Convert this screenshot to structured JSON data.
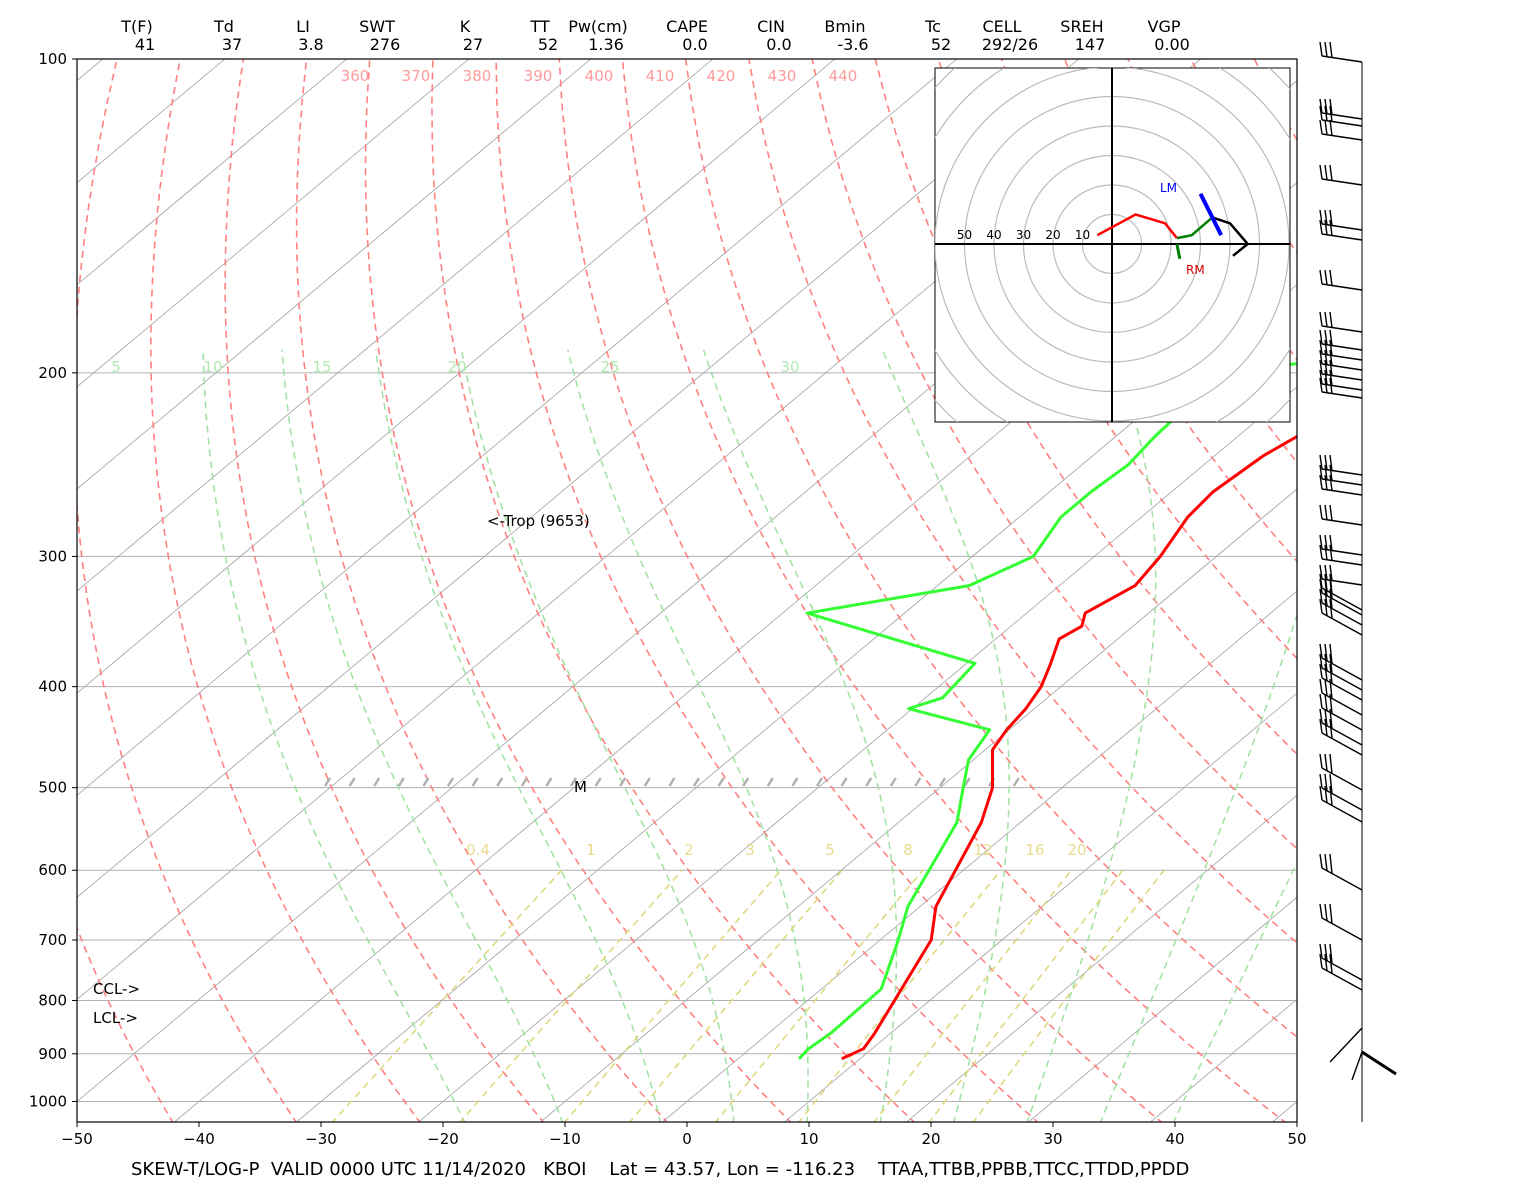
{
  "header": {
    "columns": [
      {
        "label": "T(F)",
        "value": "41"
      },
      {
        "label": "Td",
        "value": "37"
      },
      {
        "label": "LI",
        "value": "3.8"
      },
      {
        "label": "SWT",
        "value": "276"
      },
      {
        "label": "K",
        "value": "27"
      },
      {
        "label": "TT",
        "value": "52"
      },
      {
        "label": "Pw(cm)",
        "value": "1.36"
      },
      {
        "label": "CAPE",
        "value": "0.0"
      },
      {
        "label": "CIN",
        "value": "0.0"
      },
      {
        "label": "Bmin",
        "value": "-3.6"
      },
      {
        "label": "Tc",
        "value": "52"
      },
      {
        "label": "CELL",
        "value": "292/26"
      },
      {
        "label": "SREH",
        "value": "147"
      },
      {
        "label": "VGP",
        "value": "0.00"
      }
    ]
  },
  "footer": "SKEW-T/LOG-P  VALID 0000 UTC 11/14/2020   KBOI    Lat = 43.57, Lon = -116.23    TTAA,TTBB,PPBB,TTCC,TTDD,PPDD",
  "annotations": {
    "trop": "<-Trop (9653)",
    "ccl": "CCL->",
    "lcl": "LCL->",
    "m_marker": "M",
    "hodo_lm": "LM",
    "hodo_rm": "RM"
  },
  "colors": {
    "temperature": "#ff0000",
    "dewpoint": "#33ff33",
    "dry_adiabat": "#ff8080",
    "moist_adiabat": "#a0e0a0",
    "mixing_ratio": "#e0d880",
    "isotherm": "#a0a0a0",
    "hodo_lm": "#0000ff",
    "hodo_rm": "#dd0000"
  },
  "chart_data": {
    "type": "line",
    "xlim": [
      -50,
      50
    ],
    "x_ticks": [
      "−50",
      "−40",
      "−30",
      "−20",
      "−10",
      "0",
      "10",
      "20",
      "30",
      "40",
      "50"
    ],
    "pressure_ticks": [
      "100",
      "200",
      "300",
      "400",
      "500",
      "600",
      "700",
      "800",
      "900",
      "1000"
    ],
    "pressure_values": [
      100,
      200,
      300,
      400,
      500,
      600,
      700,
      800,
      900,
      1000
    ],
    "theta_labels": [
      "360",
      "370",
      "380",
      "390",
      "400",
      "410",
      "420",
      "430",
      "440"
    ],
    "moist_labels": [
      "5",
      "10",
      "15",
      "20",
      "25",
      "30"
    ],
    "mixing_labels": [
      "0.4",
      "1",
      "2",
      "3",
      "5",
      "8",
      "12",
      "16",
      "20"
    ],
    "temperature_profile": [
      [
        910,
        8.5
      ],
      [
        890,
        9.3
      ],
      [
        860,
        8.7
      ],
      [
        700,
        4.2
      ],
      [
        650,
        1.3
      ],
      [
        540,
        -3.2
      ],
      [
        500,
        -5.7
      ],
      [
        460,
        -9.4
      ],
      [
        440,
        -10.2
      ],
      [
        420,
        -10.7
      ],
      [
        400,
        -11.6
      ],
      [
        380,
        -13.1
      ],
      [
        360,
        -14.8
      ],
      [
        350,
        -14.2
      ],
      [
        340,
        -15.2
      ],
      [
        320,
        -13.8
      ],
      [
        300,
        -14.6
      ],
      [
        275,
        -16.2
      ],
      [
        260,
        -16.6
      ],
      [
        240,
        -16.0
      ],
      [
        220,
        -14.2
      ],
      [
        205,
        -12.8
      ],
      [
        200,
        -11.0
      ],
      [
        195,
        -7.0
      ],
      [
        180,
        -2.8
      ],
      [
        165,
        -3.0
      ],
      [
        145,
        -3.2
      ],
      [
        125,
        -4.7
      ],
      [
        113,
        -3.8
      ],
      [
        107,
        -2.9
      ],
      [
        100,
        -3.1
      ]
    ],
    "dewpoint_profile": [
      [
        910,
        5.0
      ],
      [
        890,
        4.8
      ],
      [
        860,
        5.1
      ],
      [
        780,
        4.9
      ],
      [
        700,
        1.5
      ],
      [
        650,
        -1.0
      ],
      [
        540,
        -5.2
      ],
      [
        500,
        -8.1
      ],
      [
        470,
        -10.4
      ],
      [
        440,
        -11.6
      ],
      [
        420,
        -20.3
      ],
      [
        410,
        -18.6
      ],
      [
        380,
        -19.3
      ],
      [
        340,
        -38.0
      ],
      [
        320,
        -27.4
      ],
      [
        300,
        -25.0
      ],
      [
        275,
        -26.6
      ],
      [
        260,
        -26.6
      ],
      [
        245,
        -26.2
      ],
      [
        230,
        -26.8
      ],
      [
        210,
        -27.2
      ],
      [
        200,
        -27.6
      ],
      [
        195,
        -21.0
      ],
      [
        180,
        -19.2
      ],
      [
        160,
        -17.9
      ],
      [
        145,
        -17.4
      ],
      [
        135,
        -17.5
      ],
      [
        125,
        -16.6
      ],
      [
        113,
        -14.0
      ],
      [
        107,
        -16.1
      ],
      [
        100,
        -16.5
      ]
    ],
    "hodograph": {
      "ring_labels": [
        "50",
        "40",
        "30",
        "20",
        "10"
      ],
      "hodo_red": [
        [
          -5,
          3
        ],
        [
          8,
          10
        ],
        [
          18,
          7
        ],
        [
          22,
          2
        ]
      ],
      "hodo_green": [
        [
          22,
          2
        ],
        [
          27,
          3
        ],
        [
          34,
          9
        ]
      ],
      "hodo_black": [
        [
          34,
          9
        ],
        [
          40,
          7
        ],
        [
          46,
          0
        ],
        [
          41,
          -4
        ]
      ],
      "lm_vector": [
        [
          30,
          17
        ],
        [
          37,
          3
        ]
      ],
      "rm_vector": [
        [
          22,
          0
        ],
        [
          23,
          -5
        ]
      ]
    }
  }
}
